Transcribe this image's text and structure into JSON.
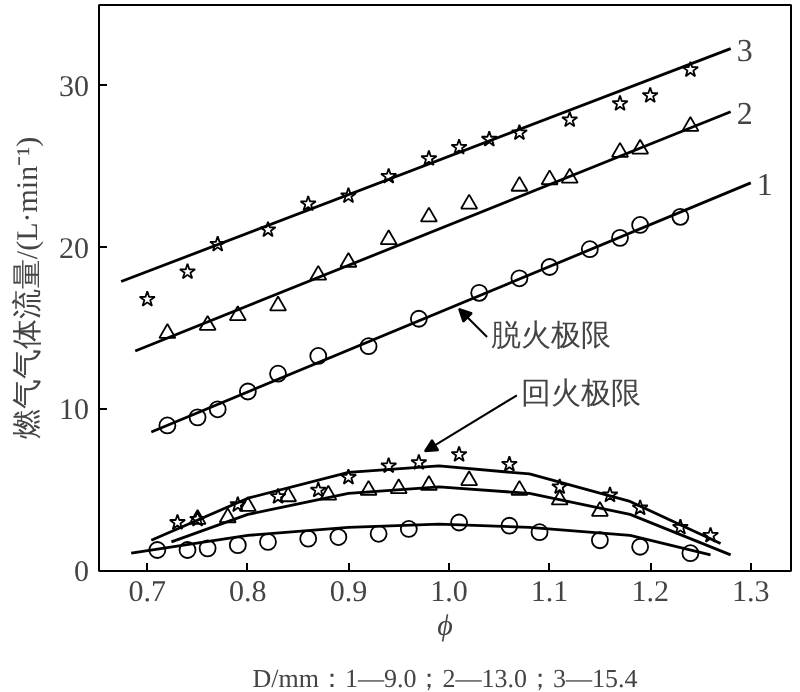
{
  "chart_data": {
    "type": "scatter",
    "xlabel": "ϕ",
    "ylabel": "燃气气体流量/(L·min⁻¹)",
    "xlim": [
      0.652,
      1.34
    ],
    "ylim": [
      0,
      35
    ],
    "xticks": [
      {
        "value": 0.7,
        "label": "0.7"
      },
      {
        "value": 0.8,
        "label": "0.8"
      },
      {
        "value": 0.9,
        "label": "0.9"
      },
      {
        "value": 1.0,
        "label": "1.0"
      },
      {
        "value": 1.1,
        "label": "1.1"
      },
      {
        "value": 1.2,
        "label": "1.2"
      },
      {
        "value": 1.3,
        "label": "1.3"
      }
    ],
    "yticks": [
      0,
      10,
      20,
      30
    ],
    "grid": false,
    "series": [
      {
        "marker": "circle",
        "color": "#000000",
        "x": [
          0.72,
          0.75,
          0.77,
          0.8,
          0.83,
          0.87,
          0.92,
          0.97,
          1.03,
          1.07,
          1.1,
          1.14,
          1.17,
          1.19,
          1.23
        ],
        "values": [
          9.0,
          9.5,
          10.0,
          11.1,
          12.2,
          13.3,
          13.9,
          15.6,
          17.2,
          18.1,
          18.8,
          19.9,
          20.6,
          21.4,
          21.9
        ]
      },
      {
        "marker": "triangle",
        "color": "#000000",
        "x": [
          0.72,
          0.76,
          0.79,
          0.83,
          0.87,
          0.9,
          0.94,
          0.98,
          1.02,
          1.07,
          1.1,
          1.12,
          1.17,
          1.19,
          1.24
        ],
        "values": [
          14.7,
          15.2,
          15.8,
          16.4,
          18.3,
          19.1,
          20.5,
          21.9,
          22.7,
          23.8,
          24.2,
          24.3,
          25.9,
          26.1,
          27.5
        ]
      },
      {
        "marker": "star",
        "color": "#000000",
        "x": [
          0.7,
          0.74,
          0.77,
          0.82,
          0.86,
          0.9,
          0.94,
          0.98,
          1.01,
          1.04,
          1.07,
          1.12,
          1.17,
          1.2,
          1.24
        ],
        "values": [
          16.8,
          18.5,
          20.2,
          21.1,
          22.7,
          23.2,
          24.4,
          25.5,
          26.2,
          26.7,
          27.1,
          27.9,
          28.9,
          29.4,
          31.0
        ]
      },
      {
        "marker": "circle",
        "color": "#000000",
        "x": [
          0.71,
          0.74,
          0.76,
          0.79,
          0.82,
          0.86,
          0.89,
          0.93,
          0.96,
          1.01,
          1.06,
          1.09,
          1.15,
          1.19,
          1.24
        ],
        "values": [
          1.3,
          1.3,
          1.4,
          1.6,
          1.8,
          2.0,
          2.1,
          2.3,
          2.6,
          3.0,
          2.8,
          2.4,
          1.9,
          1.5,
          1.1
        ]
      },
      {
        "marker": "triangle",
        "color": "#000000",
        "x": [
          0.75,
          0.78,
          0.8,
          0.84,
          0.88,
          0.92,
          0.95,
          0.98,
          1.02,
          1.07,
          1.11,
          1.15
        ],
        "values": [
          3.2,
          3.3,
          4.0,
          4.6,
          4.7,
          5.0,
          5.1,
          5.3,
          5.6,
          5.0,
          4.4,
          3.7
        ]
      },
      {
        "marker": "star",
        "color": "#000000",
        "x": [
          0.73,
          0.75,
          0.79,
          0.83,
          0.87,
          0.9,
          0.94,
          0.97,
          1.01,
          1.06,
          1.11,
          1.16,
          1.19,
          1.23,
          1.26
        ],
        "values": [
          3.0,
          3.2,
          4.1,
          4.6,
          5.0,
          5.8,
          6.5,
          6.7,
          7.2,
          6.6,
          5.2,
          4.7,
          3.9,
          2.7,
          2.2
        ]
      },
      {
        "type": "line",
        "color": "#000000",
        "x": [
          0.704,
          1.3
        ],
        "values": [
          8.6,
          24.0
        ]
      },
      {
        "type": "line",
        "color": "#000000",
        "x": [
          0.688,
          1.28
        ],
        "values": [
          13.6,
          28.4
        ]
      },
      {
        "type": "line",
        "color": "#000000",
        "x": [
          0.674,
          1.28
        ],
        "values": [
          17.9,
          32.3
        ]
      },
      {
        "type": "line",
        "color": "#000000",
        "x": [
          0.684,
          0.8,
          0.9,
          0.99,
          1.08,
          1.18,
          1.26
        ],
        "values": [
          1.1,
          2.2,
          2.7,
          2.9,
          2.7,
          2.2,
          1.0
        ]
      },
      {
        "type": "line",
        "color": "#000000",
        "x": [
          0.724,
          0.8,
          0.9,
          0.99,
          1.08,
          1.18,
          1.28
        ],
        "values": [
          1.8,
          3.5,
          4.8,
          5.2,
          4.8,
          3.5,
          1.0
        ]
      },
      {
        "type": "line",
        "color": "#000000",
        "x": [
          0.704,
          0.8,
          0.9,
          0.99,
          1.08,
          1.18,
          1.27
        ],
        "values": [
          1.9,
          4.5,
          6.1,
          6.5,
          6.0,
          4.3,
          1.7
        ]
      }
    ],
    "annotations": [
      {
        "text": "1",
        "x": 1.3,
        "y": 24.0
      },
      {
        "text": "2",
        "x": 1.28,
        "y": 28.4
      },
      {
        "text": "3",
        "x": 1.28,
        "y": 32.3
      },
      {
        "text": "脱火极限",
        "x": 1.01,
        "y": 16.2
      },
      {
        "text": "回火极限",
        "x": 0.976,
        "y": 7.4
      },
      "D/mm：1—9.0；2—13.0；3—15.4"
    ]
  }
}
